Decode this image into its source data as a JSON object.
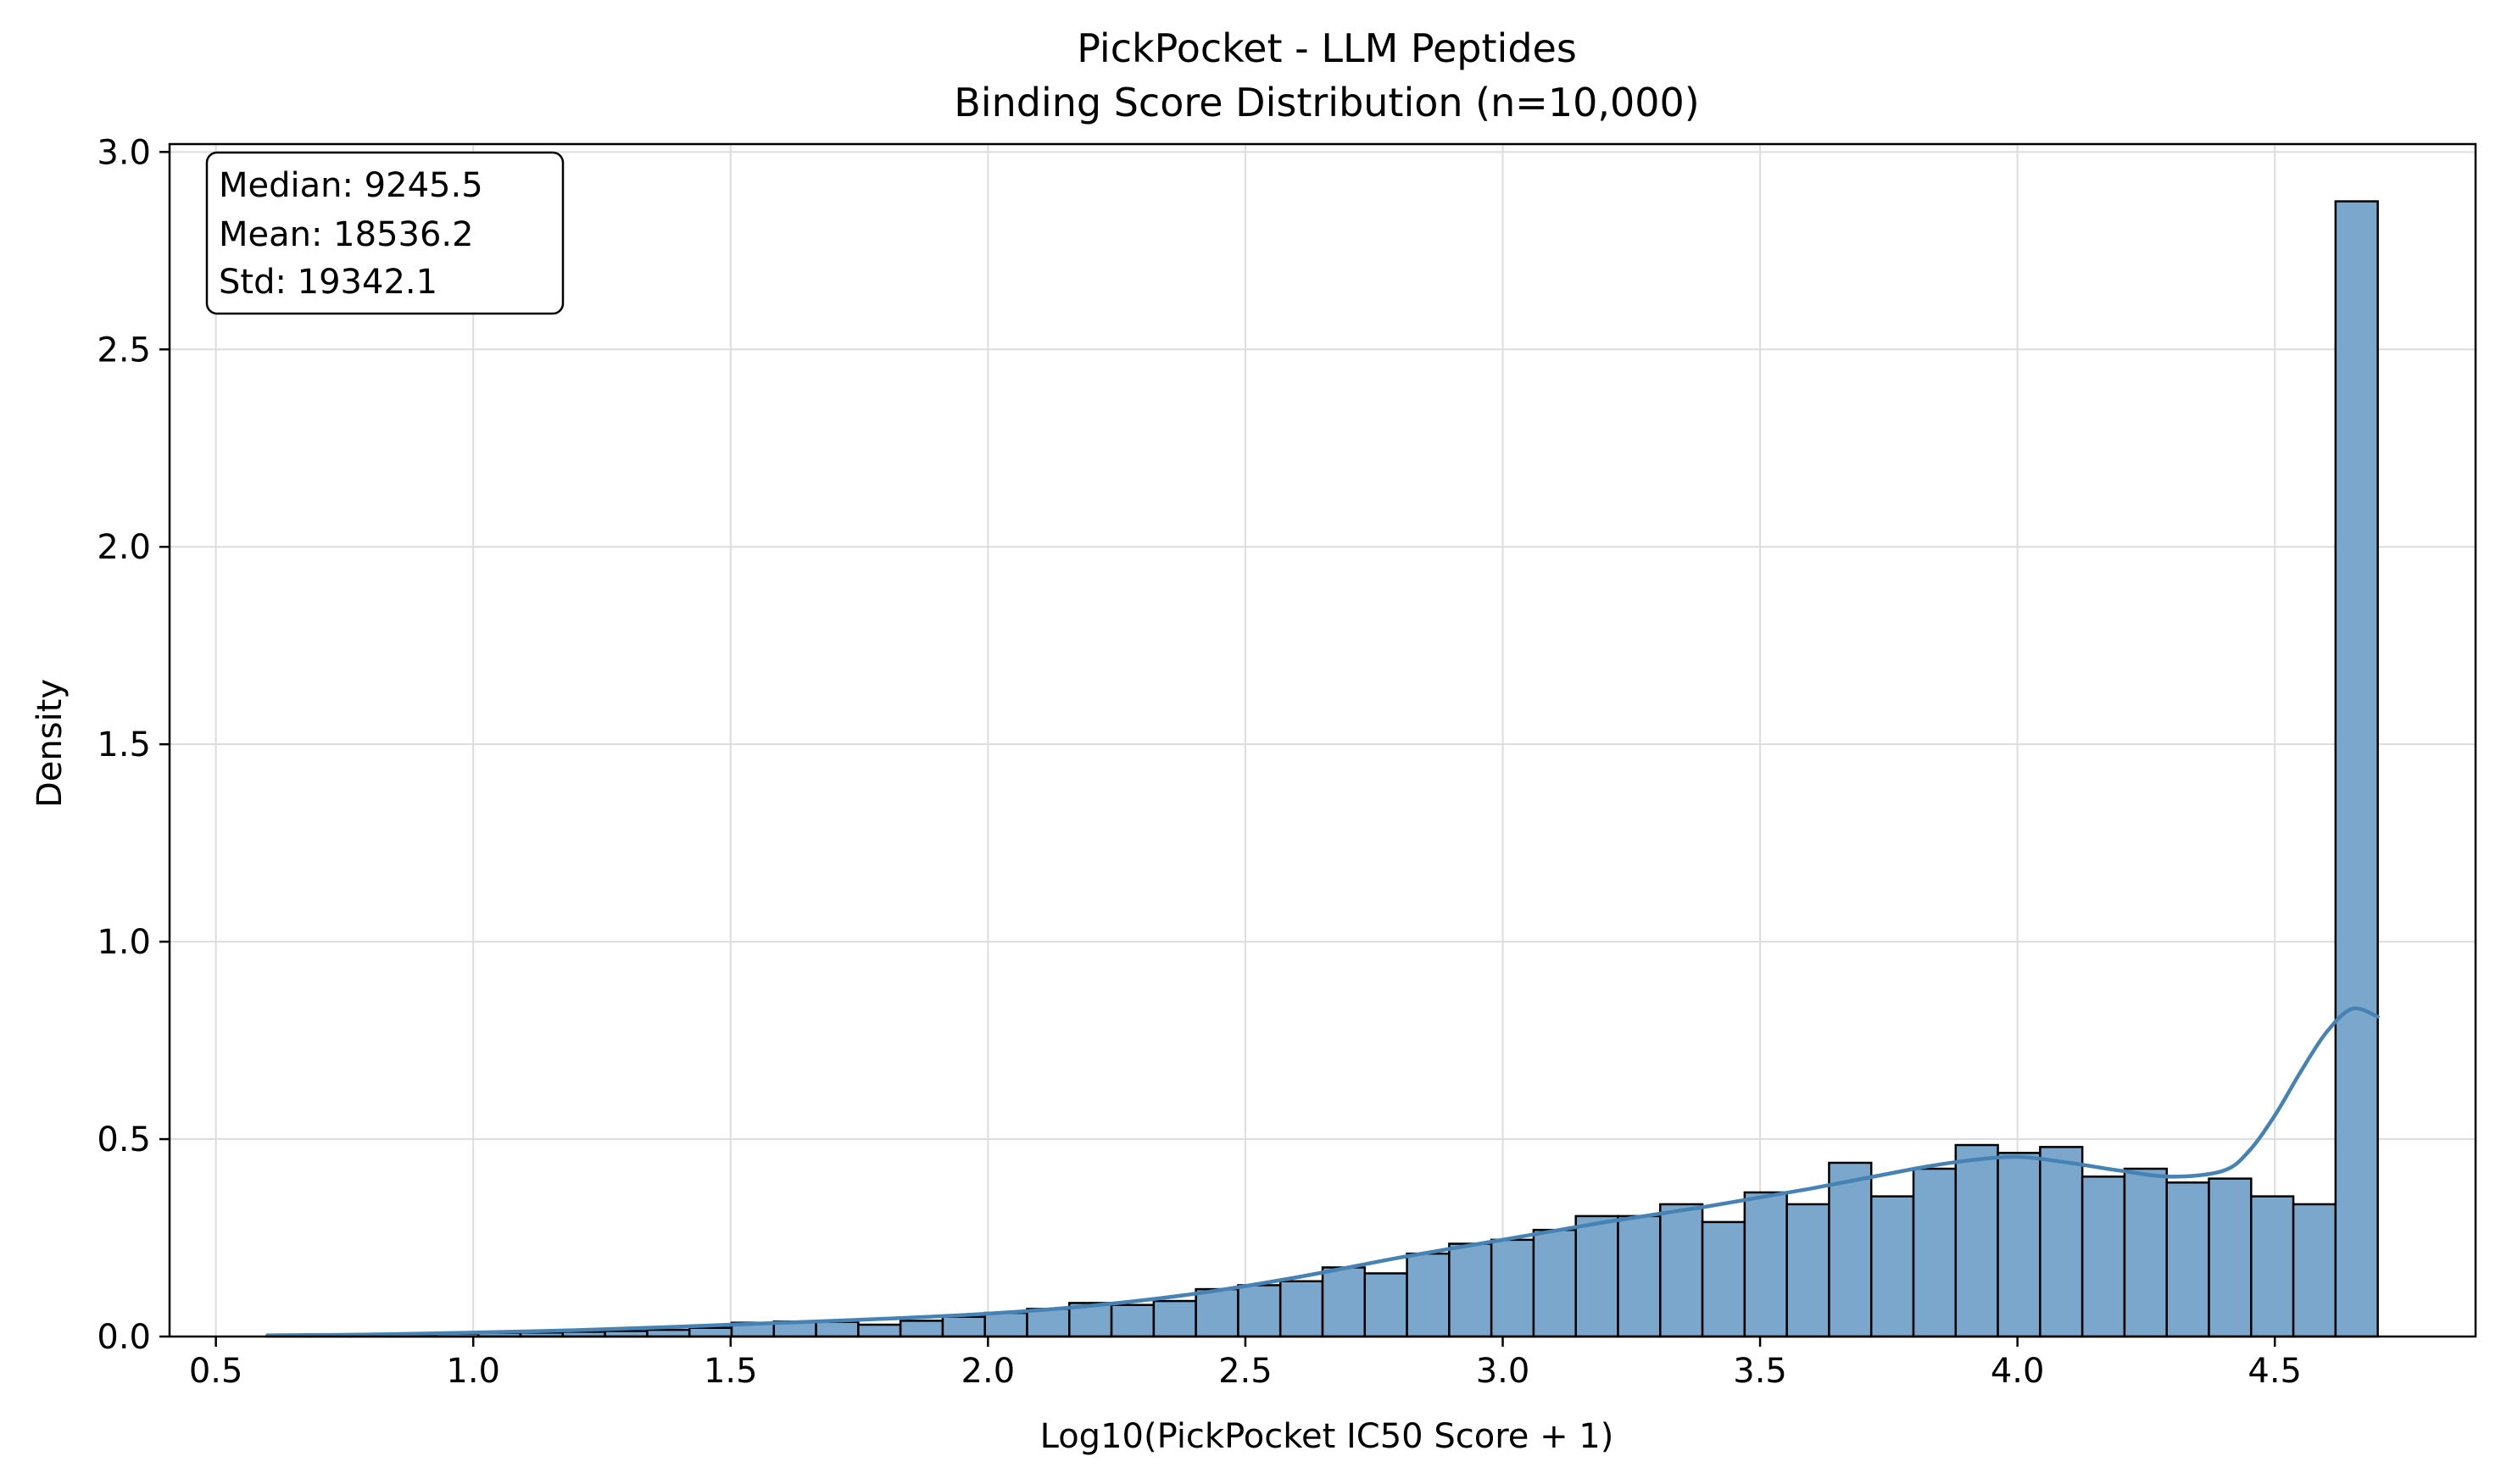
{
  "chart_data": {
    "type": "histogram",
    "title": "PickPocket - LLM Peptides",
    "subtitle": "Binding Score Distribution (n=10,000)",
    "xlabel": "Log10(PickPocket IC50 Score + 1)",
    "ylabel": "Density",
    "xlim": [
      0.41,
      4.89
    ],
    "ylim": [
      0.0,
      3.02
    ],
    "xticks": [
      0.5,
      1.0,
      1.5,
      2.0,
      2.5,
      3.0,
      3.5,
      4.0,
      4.5
    ],
    "xtick_labels": [
      "0.5",
      "1.0",
      "1.5",
      "2.0",
      "2.5",
      "3.0",
      "3.5",
      "4.0",
      "4.5"
    ],
    "yticks": [
      0.0,
      0.5,
      1.0,
      1.5,
      2.0,
      2.5,
      3.0
    ],
    "ytick_labels": [
      "0.0",
      "0.5",
      "1.0",
      "1.5",
      "2.0",
      "2.5",
      "3.0"
    ],
    "grid": true,
    "bar_color": "#7BA7CC",
    "bar_edge_color": "#000000",
    "kde_color": "#4682B4",
    "bins": {
      "x_start": [
        0.6,
        0.682,
        0.764,
        0.846,
        0.928,
        1.01,
        1.092,
        1.174,
        1.256,
        1.338,
        1.42,
        1.502,
        1.584,
        1.666,
        1.748,
        1.83,
        1.912,
        1.994,
        2.076,
        2.158,
        2.24,
        2.322,
        2.404,
        2.486,
        2.568,
        2.65,
        2.732,
        2.814,
        2.896,
        2.978,
        3.06,
        3.142,
        3.224,
        3.306,
        3.388,
        3.47,
        3.552,
        3.634,
        3.716,
        3.798,
        3.88,
        3.962,
        4.044,
        4.126,
        4.208,
        4.29,
        4.372,
        4.454,
        4.536,
        4.618
      ],
      "width": 0.082,
      "density": [
        0.002,
        0.003,
        0.004,
        0.005,
        0.007,
        0.009,
        0.01,
        0.012,
        0.014,
        0.017,
        0.022,
        0.035,
        0.038,
        0.037,
        0.03,
        0.04,
        0.05,
        0.06,
        0.07,
        0.085,
        0.08,
        0.09,
        0.12,
        0.13,
        0.14,
        0.175,
        0.16,
        0.21,
        0.235,
        0.245,
        0.27,
        0.305,
        0.305,
        0.335,
        0.29,
        0.365,
        0.335,
        0.44,
        0.355,
        0.425,
        0.485,
        0.465,
        0.48,
        0.405,
        0.425,
        0.39,
        0.4,
        0.355,
        0.335,
        2.875
      ]
    },
    "kde": {
      "x": [
        0.6,
        0.8,
        1.0,
        1.2,
        1.4,
        1.6,
        1.8,
        2.0,
        2.2,
        2.4,
        2.6,
        2.8,
        3.0,
        3.2,
        3.4,
        3.6,
        3.8,
        3.9,
        4.0,
        4.1,
        4.2,
        4.3,
        4.4,
        4.45,
        4.5,
        4.55,
        4.6,
        4.65,
        4.7
      ],
      "density": [
        0.003,
        0.005,
        0.01,
        0.016,
        0.025,
        0.035,
        0.045,
        0.058,
        0.078,
        0.108,
        0.15,
        0.2,
        0.245,
        0.29,
        0.33,
        0.375,
        0.425,
        0.445,
        0.455,
        0.44,
        0.42,
        0.405,
        0.42,
        0.47,
        0.56,
        0.67,
        0.77,
        0.83,
        0.81
      ]
    },
    "annotation": {
      "position": "top-left",
      "lines": [
        "Median: 9245.5",
        "Mean: 18536.2",
        "Std: 19342.1"
      ]
    }
  }
}
